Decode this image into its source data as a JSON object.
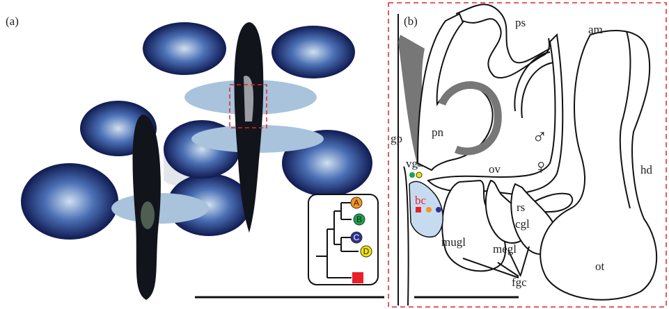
{
  "panel_a": {
    "label": "(a)",
    "tree_tips": [
      "A",
      "B",
      "C",
      "D"
    ]
  },
  "panel_b": {
    "label": "(b)",
    "labels": [
      "ps",
      "am",
      "gp",
      "pn",
      "vg",
      "ov",
      "hd",
      "rs",
      "bc",
      "cgl",
      "mugl",
      "megl",
      "ot",
      "fgc",
      "♂",
      "♀"
    ]
  }
}
